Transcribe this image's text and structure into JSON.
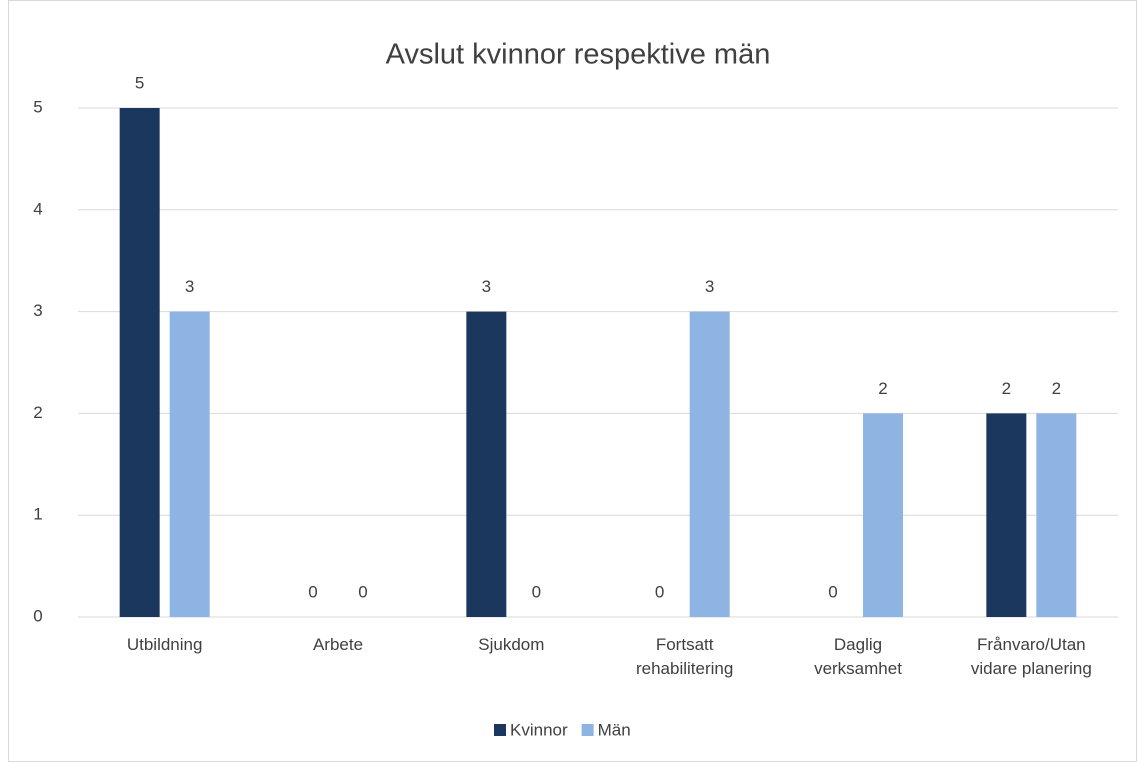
{
  "chart_data": {
    "type": "bar",
    "title": "Avslut kvinnor respektive män",
    "categories": [
      "Utbildning",
      "Arbete",
      "Sjukdom",
      "Fortsatt rehabilitering",
      "Daglig verksamhet",
      "Frånvaro/Utan vidare planering"
    ],
    "series": [
      {
        "name": "Kvinnor",
        "color": "#1b375e",
        "values": [
          5,
          0,
          3,
          0,
          0,
          2
        ]
      },
      {
        "name": "Män",
        "color": "#8eb4e3",
        "values": [
          3,
          0,
          0,
          3,
          2,
          2
        ]
      }
    ],
    "ylim": [
      0,
      5
    ],
    "yticks": [
      0,
      1,
      2,
      3,
      4,
      5
    ],
    "grid": true,
    "legend": "bottom"
  }
}
